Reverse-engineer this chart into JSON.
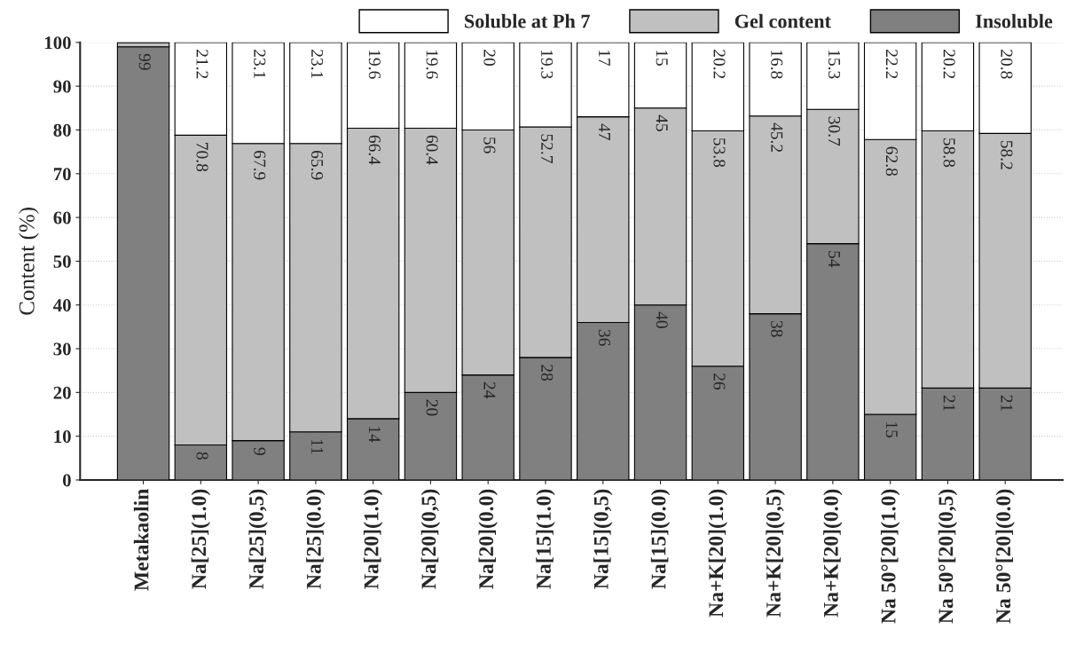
{
  "chart_data": {
    "type": "bar",
    "stacked": true,
    "ylabel": "Content (%)",
    "categories": [
      "Metakaolin",
      "Na[25](1.0)",
      "Na[25](0,5)",
      "Na[25](0.0)",
      "Na[20](1.0)",
      "Na[20](0,5)",
      "Na[20](0.0)",
      "Na[15](1.0)",
      "Na[15](0,5)",
      "Na[15](0.0)",
      "Na+K[20](1.0)",
      "Na+K[20](0,5)",
      "Na+K[20](0.0)",
      "Na 50°[20](1.0)",
      "Na 50°[20](0,5)",
      "Na 50°[20](0.0)"
    ],
    "series": [
      {
        "name": "Insoluble",
        "color": "#808080",
        "values": [
          99,
          8,
          9,
          11,
          14,
          20,
          24,
          28,
          36,
          40,
          26,
          38,
          54,
          15,
          21,
          21
        ],
        "value_labels": [
          "99",
          "8",
          "9",
          "11",
          "14",
          "20",
          "24",
          "28",
          "36",
          "40",
          "26",
          "38",
          "54",
          "15",
          "21",
          "21"
        ]
      },
      {
        "name": "Gel content",
        "color": "#c0c0c0",
        "values": [
          1,
          70.8,
          67.9,
          65.9,
          66.4,
          60.4,
          56,
          52.7,
          47,
          45,
          53.8,
          45.2,
          30.7,
          62.8,
          58.8,
          58.2
        ],
        "value_labels": [
          null,
          "70.8",
          "67.9",
          "65.9",
          "66.4",
          "60.4",
          "56",
          "52.7",
          "47",
          "45",
          "53.8",
          "45.2",
          "30.7",
          "62.8",
          "58.8",
          "58.2"
        ]
      },
      {
        "name": "Soluble at Ph 7",
        "color": "#ffffff",
        "values": [
          null,
          21.2,
          23.1,
          23.1,
          19.6,
          19.6,
          20,
          19.3,
          17,
          15,
          20.2,
          16.8,
          15.3,
          22.2,
          20.2,
          20.8
        ],
        "value_labels": [
          null,
          "21.2",
          "23.1",
          "23.1",
          "19.6",
          "19.6",
          "20",
          "19.3",
          "17",
          "15",
          "20.2",
          "16.8",
          "15.3",
          "22.2",
          "20.2",
          "20.8"
        ]
      }
    ],
    "ylim": [
      0,
      100
    ],
    "yticks": [
      0,
      10,
      20,
      30,
      40,
      50,
      60,
      70,
      80,
      90,
      100
    ],
    "grid": "y",
    "legend": "top right"
  }
}
